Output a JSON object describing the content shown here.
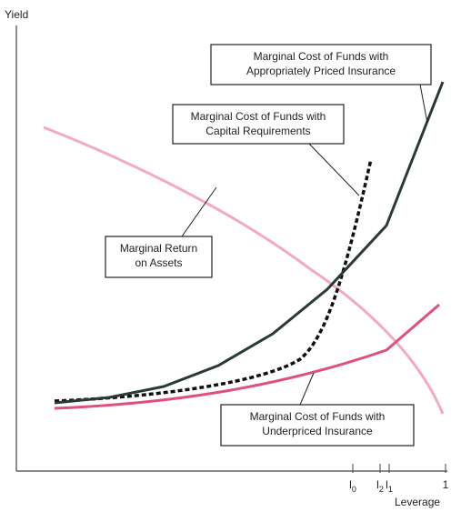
{
  "axes": {
    "y_label": "Yield",
    "x_label": "Leverage",
    "x_ticks": [
      {
        "base": "l",
        "sub": "0"
      },
      {
        "base": "l",
        "sub": "2"
      },
      {
        "base": "l",
        "sub": "1"
      },
      {
        "base": "1",
        "sub": null
      }
    ]
  },
  "labels": [
    {
      "lines": [
        "Marginal Cost of Funds with",
        "Appropriately Priced Insurance"
      ]
    },
    {
      "lines": [
        "Marginal Cost of Funds with",
        "Capital Requirements"
      ]
    },
    {
      "lines": [
        "Marginal Return",
        "on Assets"
      ]
    },
    {
      "lines": [
        "Marginal Cost of Funds with",
        "Underpriced Insurance"
      ]
    }
  ]
}
